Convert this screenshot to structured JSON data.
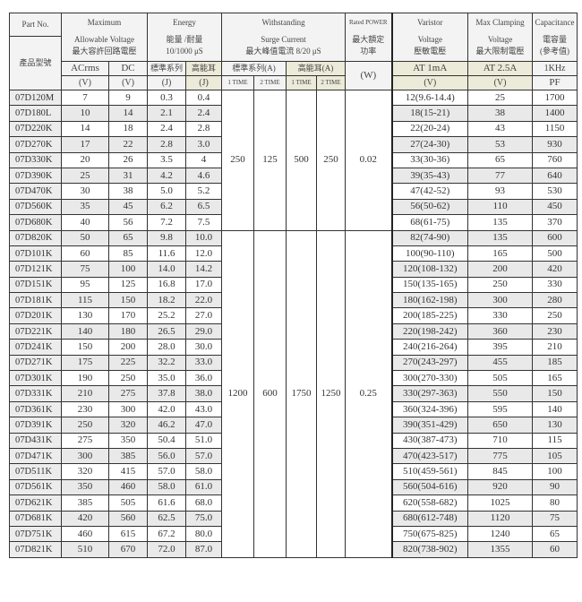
{
  "header": {
    "part_no": "Part No.",
    "part_no_cn": "產品型號",
    "max_voltage": [
      "Maximum",
      "Allowable Voltage",
      "最大容許回路電壓"
    ],
    "acrms": "ACrms",
    "dc": "DC",
    "v_unit": "(V)",
    "energy": [
      "Energy",
      "能量 /耐量",
      "10/1000 μS"
    ],
    "energy_std": "標準系列",
    "energy_high": "高能耳",
    "j_unit": "(J)",
    "surge": [
      "Withstanding",
      "Surge Current",
      "最大峰值電流 8/20 μS"
    ],
    "surge_std": "標準系列(A)",
    "surge_high": "高能耳(A)",
    "one_time": "1 TIME",
    "two_time": "2 TIME",
    "power": [
      "Rated POWER",
      "最大額定",
      "功率"
    ],
    "w_unit": "(W)",
    "varistor": [
      "Varistor",
      "Voltage",
      "壓敏電壓"
    ],
    "at_1ma": "AT 1mA",
    "clamping": [
      "Max Clamping",
      "Voltage",
      "最大限制電壓"
    ],
    "at_25a": "AT 2.5A",
    "capacitance": [
      "Capacitance",
      "電容量",
      "(參考值)"
    ],
    "khz": "1KHz",
    "pf_unit": "PF"
  },
  "groups": [
    {
      "surge_std_1": "250",
      "surge_std_2": "125",
      "surge_high_1": "500",
      "surge_high_2": "250",
      "power": "0.02"
    },
    {
      "surge_std_1": "1200",
      "surge_std_2": "600",
      "surge_high_1": "1750",
      "surge_high_2": "1250",
      "power": "0.25"
    }
  ],
  "rows": [
    [
      "07D120M",
      "7",
      "9",
      "0.3",
      "0.4",
      "12(9.6-14.4)",
      "25",
      "1700"
    ],
    [
      "07D180L",
      "10",
      "14",
      "2.1",
      "2.4",
      "18(15-21)",
      "38",
      "1400"
    ],
    [
      "07D220K",
      "14",
      "18",
      "2.4",
      "2.8",
      "22(20-24)",
      "43",
      "1150"
    ],
    [
      "07D270K",
      "17",
      "22",
      "2.8",
      "3.0",
      "27(24-30)",
      "53",
      "930"
    ],
    [
      "07D330K",
      "20",
      "26",
      "3.5",
      "4",
      "33(30-36)",
      "65",
      "760"
    ],
    [
      "07D390K",
      "25",
      "31",
      "4.2",
      "4.6",
      "39(35-43)",
      "77",
      "640"
    ],
    [
      "07D470K",
      "30",
      "38",
      "5.0",
      "5.2",
      "47(42-52)",
      "93",
      "530"
    ],
    [
      "07D560K",
      "35",
      "45",
      "6.2",
      "6.5",
      "56(50-62)",
      "110",
      "450"
    ],
    [
      "07D680K",
      "40",
      "56",
      "7.2",
      "7.5",
      "68(61-75)",
      "135",
      "370"
    ],
    [
      "07D820K",
      "50",
      "65",
      "9.8",
      "10.0",
      "82(74-90)",
      "135",
      "600"
    ],
    [
      "07D101K",
      "60",
      "85",
      "11.6",
      "12.0",
      "100(90-110)",
      "165",
      "500"
    ],
    [
      "07D121K",
      "75",
      "100",
      "14.0",
      "14.2",
      "120(108-132)",
      "200",
      "420"
    ],
    [
      "07D151K",
      "95",
      "125",
      "16.8",
      "17.0",
      "150(135-165)",
      "250",
      "330"
    ],
    [
      "07D181K",
      "115",
      "150",
      "18.2",
      "22.0",
      "180(162-198)",
      "300",
      "280"
    ],
    [
      "07D201K",
      "130",
      "170",
      "25.2",
      "27.0",
      "200(185-225)",
      "330",
      "250"
    ],
    [
      "07D221K",
      "140",
      "180",
      "26.5",
      "29.0",
      "220(198-242)",
      "360",
      "230"
    ],
    [
      "07D241K",
      "150",
      "200",
      "28.0",
      "30.0",
      "240(216-264)",
      "395",
      "210"
    ],
    [
      "07D271K",
      "175",
      "225",
      "32.2",
      "33.0",
      "270(243-297)",
      "455",
      "185"
    ],
    [
      "07D301K",
      "190",
      "250",
      "35.0",
      "36.0",
      "300(270-330)",
      "505",
      "165"
    ],
    [
      "07D331K",
      "210",
      "275",
      "37.8",
      "38.0",
      "330(297-363)",
      "550",
      "150"
    ],
    [
      "07D361K",
      "230",
      "300",
      "42.0",
      "43.0",
      "360(324-396)",
      "595",
      "140"
    ],
    [
      "07D391K",
      "250",
      "320",
      "46.2",
      "47.0",
      "390(351-429)",
      "650",
      "130"
    ],
    [
      "07D431K",
      "275",
      "350",
      "50.4",
      "51.0",
      "430(387-473)",
      "710",
      "115"
    ],
    [
      "07D471K",
      "300",
      "385",
      "56.0",
      "57.0",
      "470(423-517)",
      "775",
      "105"
    ],
    [
      "07D511K",
      "320",
      "415",
      "57.0",
      "58.0",
      "510(459-561)",
      "845",
      "100"
    ],
    [
      "07D561K",
      "350",
      "460",
      "58.0",
      "61.0",
      "560(504-616)",
      "920",
      "90"
    ],
    [
      "07D621K",
      "385",
      "505",
      "61.6",
      "68.0",
      "620(558-682)",
      "1025",
      "80"
    ],
    [
      "07D681K",
      "420",
      "560",
      "62.5",
      "75.0",
      "680(612-748)",
      "1120",
      "75"
    ],
    [
      "07D751K",
      "460",
      "615",
      "67.2",
      "80.0",
      "750(675-825)",
      "1240",
      "65"
    ],
    [
      "07D821K",
      "510",
      "670",
      "72.0",
      "87.0",
      "820(738-902)",
      "1355",
      "60"
    ]
  ],
  "group_sizes": [
    9,
    21
  ],
  "colors": {
    "header_bg": "#f3f3f3",
    "highlight_bg": "#ecead8",
    "alt_row_bg": "#e9e9e9",
    "border": "#333333"
  }
}
